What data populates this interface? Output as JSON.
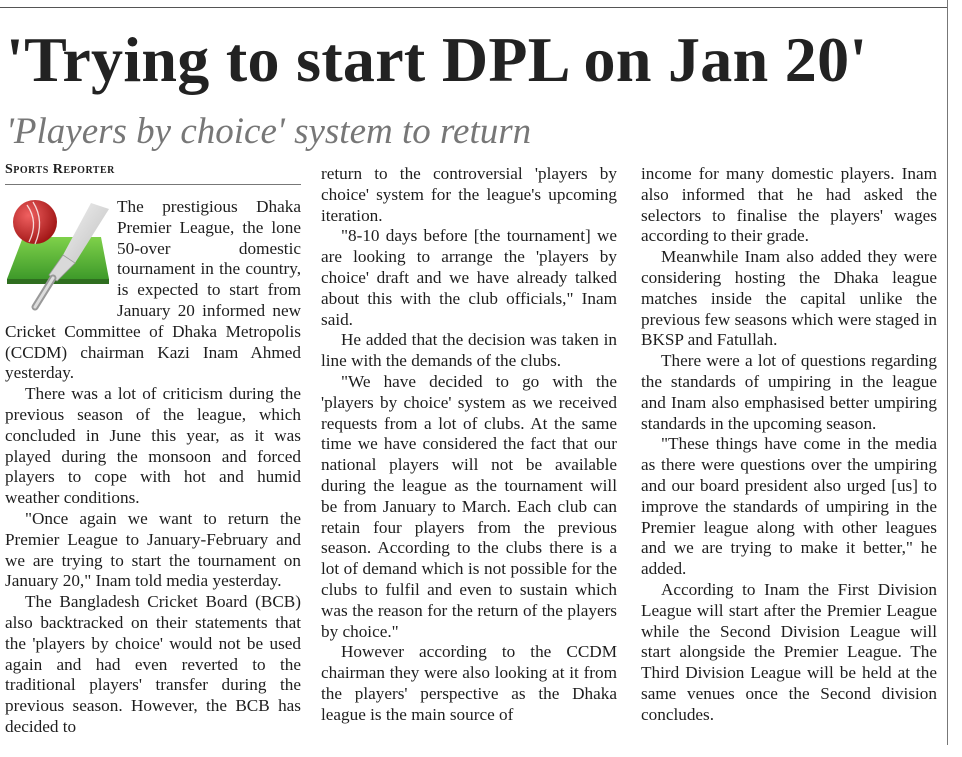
{
  "article": {
    "headline": "'Trying to start DPL on Jan 20'",
    "subheadline": "'Players by choice' system to return",
    "byline": "Sports Reporter",
    "icon": "cricket-ball-and-bat-icon",
    "columns": [
      [
        "The prestigious Dhaka Premier League, the lone 50-over domestic tournament in the country, is expected to start from January 20 informed new Cricket Committee of Dhaka Metropolis (CCDM) chairman Kazi Inam Ahmed yesterday.",
        "There was a lot of criticism during the previous season of the league, which concluded in June this year, as it was played during the monsoon and forced players to cope with hot and humid weather conditions.",
        "\"Once again we want to return the Premier League to January-February and we are trying to start the tournament on January 20,\" Inam told media yesterday.",
        "The Bangladesh Cricket Board (BCB) also backtracked on their statements that the 'players by choice' would not be used again and had even reverted to the traditional players' transfer during the previous season. However, the BCB has decided to"
      ],
      [
        "return to the controversial 'players by choice' system for the league's upcoming iteration.",
        "\"8-10 days before [the tournament] we are looking to arrange the 'players by choice' draft and we have already talked about this with the club officials,\" Inam said.",
        "He added that the decision was taken in line with the demands of the clubs.",
        "\"We have decided to go with the 'players by choice' system as we received requests from a lot of clubs. At the same time we have considered the fact that our national players will not be available during the league as the tournament will be from January to March. Each club can retain four players from the previous season. According to the clubs there is a lot of demand which is not possible for the clubs to fulfil and even to sustain which was the reason for the return of the players by choice.\"",
        "However according to the CCDM chairman they were also looking at it from the players' perspective as the Dhaka league is the main source of"
      ],
      [
        "income for many domestic players. Inam also informed that he had asked the selectors to finalise the players' wages according to their grade.",
        "Meanwhile Inam also added they were considering hosting the Dhaka league matches inside the capital unlike the previous few seasons which were staged in BKSP and Fatullah.",
        "There were a lot of questions regarding the standards of umpiring in the league and Inam also emphasised better umpiring standards in the upcoming season.",
        "\"These things have come in the media as there were questions over the umpiring and our board president also urged [us] to improve the standards of umpiring in the Premier league along with other leagues and we are trying to make it better,\" he added.",
        "According to Inam the First Division League will start after the Premier League while the Second Division League will start alongside the Premier League. The Third Division League will be held at the same venues once the Second division concludes."
      ]
    ]
  }
}
